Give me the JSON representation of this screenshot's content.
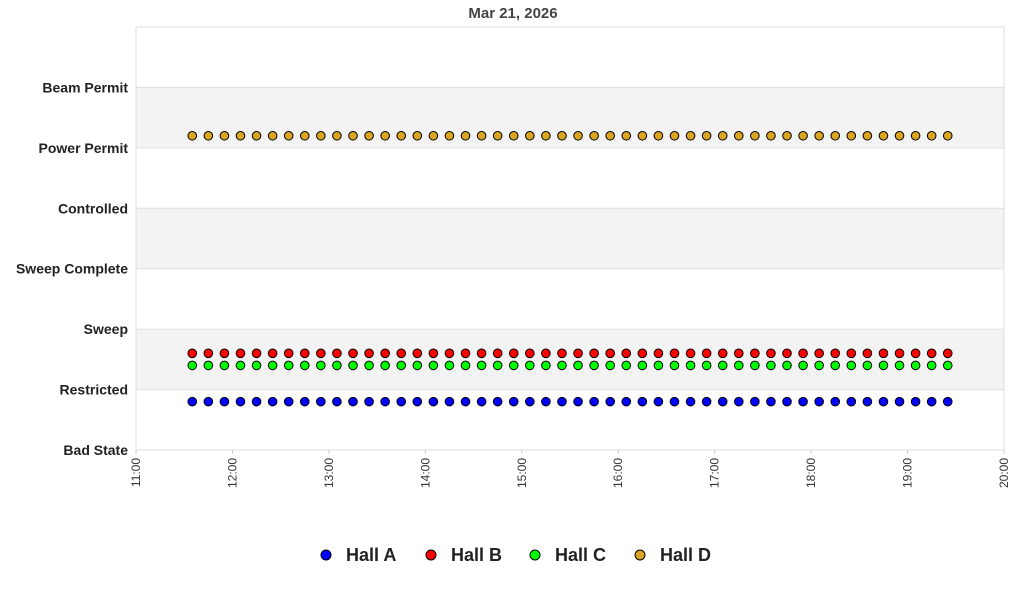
{
  "chart_data": {
    "type": "scatter",
    "title": "Mar 21, 2026",
    "xlabel": "",
    "ylabel": "",
    "x_ticks": [
      "11:00",
      "12:00",
      "13:00",
      "14:00",
      "15:00",
      "16:00",
      "17:00",
      "18:00",
      "19:00",
      "20:00"
    ],
    "xlim": [
      "11:00",
      "20:00"
    ],
    "y_categories": [
      "Bad State",
      "Restricted",
      "Sweep",
      "Sweep Complete",
      "Controlled",
      "Power Permit",
      "Beam Permit"
    ],
    "ylim": [
      0,
      7
    ],
    "grid": "alternating horizontal bands",
    "legend_placement": "bottom",
    "x": [
      "11:35",
      "11:45",
      "11:55",
      "12:05",
      "12:15",
      "12:25",
      "12:35",
      "12:45",
      "12:55",
      "13:05",
      "13:15",
      "13:25",
      "13:35",
      "13:45",
      "13:55",
      "14:05",
      "14:15",
      "14:25",
      "14:35",
      "14:45",
      "14:55",
      "15:05",
      "15:15",
      "15:25",
      "15:35",
      "15:45",
      "15:55",
      "16:05",
      "16:15",
      "16:25",
      "16:35",
      "16:45",
      "16:55",
      "17:05",
      "17:15",
      "17:25",
      "17:35",
      "17:45",
      "17:55",
      "18:05",
      "18:15",
      "18:25",
      "18:35",
      "18:45",
      "18:55",
      "19:05",
      "19:15",
      "19:25"
    ],
    "series": [
      {
        "name": "Hall A",
        "color": "#0000ff",
        "value": 0.8
      },
      {
        "name": "Hall B",
        "color": "#ff0000",
        "value": 1.6
      },
      {
        "name": "Hall C",
        "color": "#00ff00",
        "value": 1.4
      },
      {
        "name": "Hall D",
        "color": "#daa520",
        "value": 5.2
      }
    ]
  }
}
